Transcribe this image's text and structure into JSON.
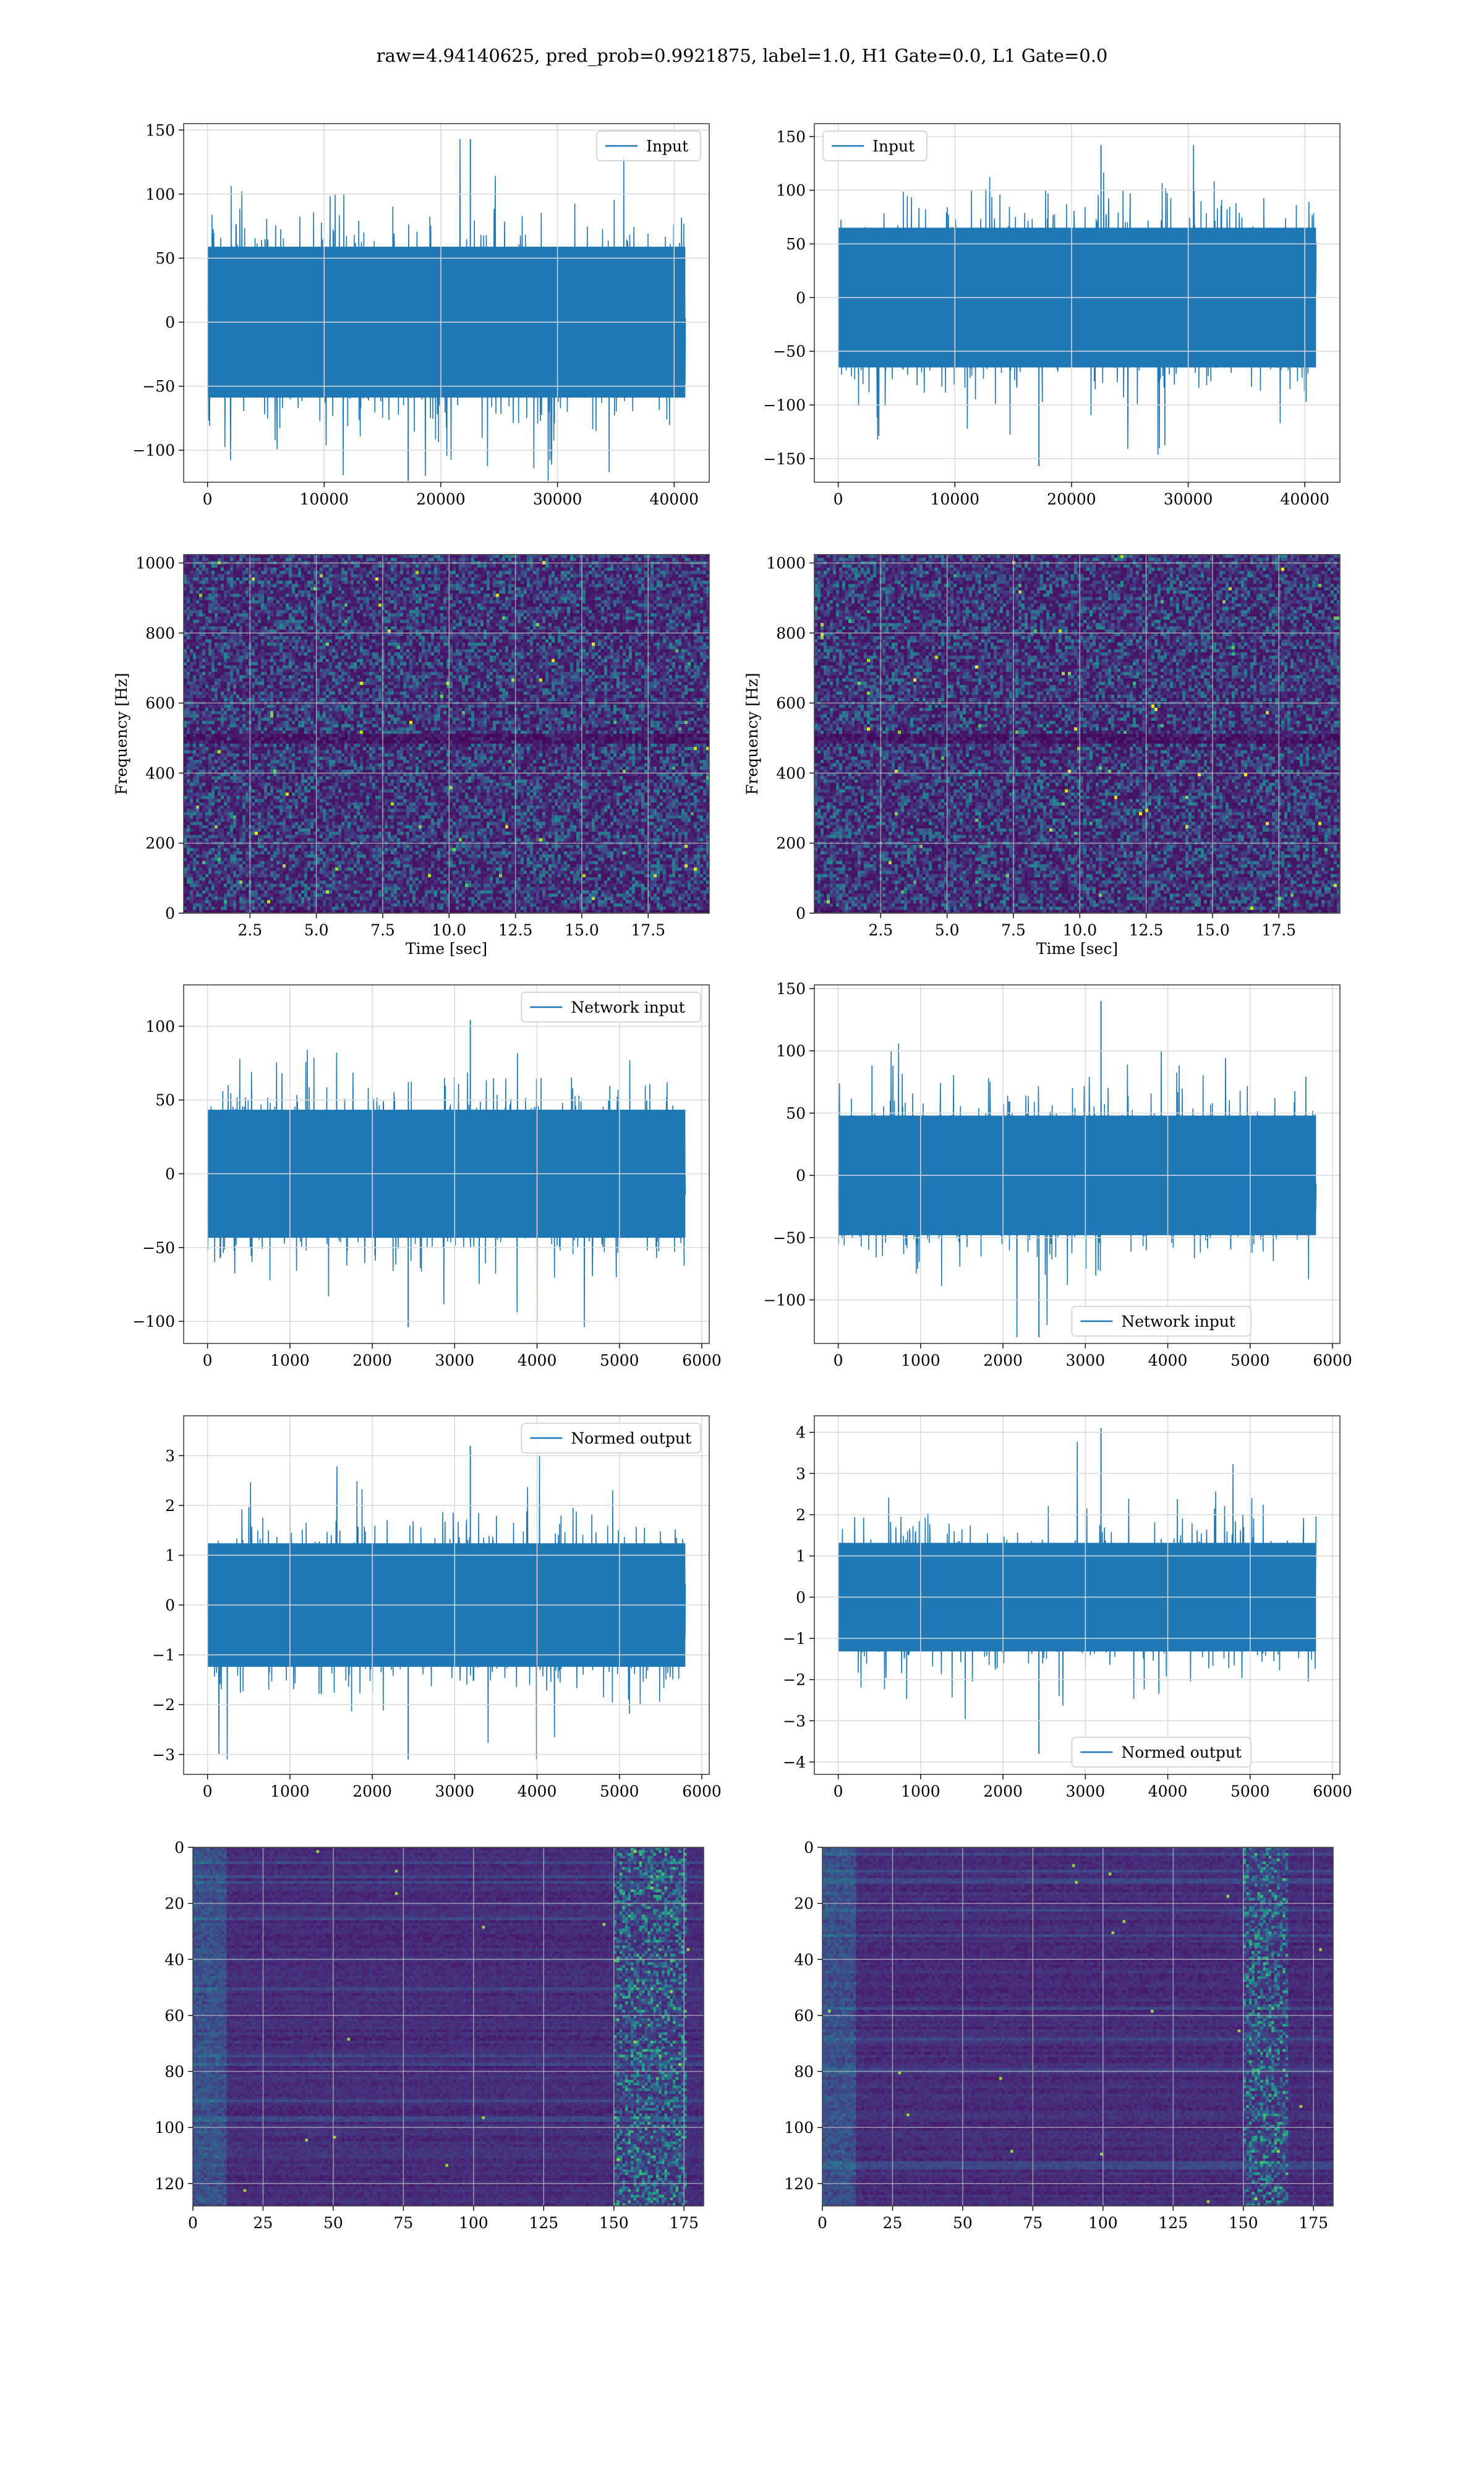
{
  "suptitle": "raw=4.94140625, pred_prob=0.9921875, label=1.0, H1 Gate=0.0, L1 Gate=0.0",
  "colors": {
    "series": "#1f77b4",
    "grid": "#d9d9d9",
    "axes": "#444444"
  },
  "chart_data": [
    {
      "id": "h1-input",
      "type": "line",
      "n_points": 40960,
      "xlim": [
        -2048,
        43008
      ],
      "ylim": [
        -125,
        155
      ],
      "xticks": [
        0,
        10000,
        20000,
        30000,
        40000
      ],
      "xticklabels": [
        "0",
        "10000",
        "20000",
        "30000",
        "40000"
      ],
      "yticks": [
        150,
        100,
        50,
        0,
        -50,
        -100
      ],
      "yticklabels": [
        "150",
        "100",
        "50",
        "0",
        "−50",
        "−100"
      ],
      "series": [
        {
          "name": "Input",
          "amplitude_sigma": 38,
          "peak_max": 143,
          "peak_min": -124
        }
      ],
      "legend_pos": "top-right",
      "grid": true,
      "xlabel": "",
      "ylabel": ""
    },
    {
      "id": "l1-input",
      "type": "line",
      "n_points": 40960,
      "xlim": [
        -2048,
        43008
      ],
      "ylim": [
        -172,
        162
      ],
      "xticks": [
        0,
        10000,
        20000,
        30000,
        40000
      ],
      "xticklabels": [
        "0",
        "10000",
        "20000",
        "30000",
        "40000"
      ],
      "yticks": [
        150,
        100,
        50,
        0,
        -50,
        -100,
        -150
      ],
      "yticklabels": [
        "150",
        "100",
        "50",
        "0",
        "−50",
        "−100",
        "−150"
      ],
      "series": [
        {
          "name": "Input",
          "amplitude_sigma": 42,
          "peak_max": 142,
          "peak_min": -157
        }
      ],
      "legend_pos": "top-left",
      "grid": true,
      "xlabel": "",
      "ylabel": ""
    },
    {
      "id": "h1-spectrogram",
      "type": "heatmap",
      "cmap": "viridis",
      "xlim": [
        0,
        19.8
      ],
      "ylim": [
        0,
        1024
      ],
      "xticks": [
        2.5,
        5.0,
        7.5,
        10.0,
        12.5,
        15.0,
        17.5
      ],
      "xticklabels": [
        "2.5",
        "5.0",
        "7.5",
        "10.0",
        "12.5",
        "15.0",
        "17.5"
      ],
      "yticks": [
        0,
        200,
        400,
        600,
        800,
        1000
      ],
      "yticklabels": [
        "0",
        "200",
        "400",
        "600",
        "800",
        "1000"
      ],
      "xlabel": "Time [sec]",
      "ylabel": "Frequency [Hz]",
      "dark_band_hz": 500,
      "grid": true
    },
    {
      "id": "l1-spectrogram",
      "type": "heatmap",
      "cmap": "viridis",
      "xlim": [
        0,
        19.8
      ],
      "ylim": [
        0,
        1024
      ],
      "xticks": [
        2.5,
        5.0,
        7.5,
        10.0,
        12.5,
        15.0,
        17.5
      ],
      "xticklabels": [
        "2.5",
        "5.0",
        "7.5",
        "10.0",
        "12.5",
        "15.0",
        "17.5"
      ],
      "yticks": [
        0,
        200,
        400,
        600,
        800,
        1000
      ],
      "yticklabels": [
        "0",
        "200",
        "400",
        "600",
        "800",
        "1000"
      ],
      "xlabel": "Time [sec]",
      "ylabel": "Frequency [Hz]",
      "dark_band_hz": 500,
      "grid": true
    },
    {
      "id": "h1-network-input",
      "type": "line",
      "n_points": 5800,
      "xlim": [
        -290,
        6090
      ],
      "ylim": [
        -115,
        128
      ],
      "xticks": [
        0,
        1000,
        2000,
        3000,
        4000,
        5000,
        6000
      ],
      "xticklabels": [
        "0",
        "1000",
        "2000",
        "3000",
        "4000",
        "5000",
        "6000"
      ],
      "yticks": [
        100,
        50,
        0,
        -50,
        -100
      ],
      "yticklabels": [
        "100",
        "50",
        "0",
        "−50",
        "−100"
      ],
      "series": [
        {
          "name": "Network input",
          "amplitude_sigma": 28,
          "peak_max": 104,
          "peak_min": -104
        }
      ],
      "legend_pos": "top-right",
      "grid": true,
      "xlabel": "",
      "ylabel": ""
    },
    {
      "id": "l1-network-input",
      "type": "line",
      "n_points": 5800,
      "xlim": [
        -290,
        6090
      ],
      "ylim": [
        -135,
        153
      ],
      "xticks": [
        0,
        1000,
        2000,
        3000,
        4000,
        5000,
        6000
      ],
      "xticklabels": [
        "0",
        "1000",
        "2000",
        "3000",
        "4000",
        "5000",
        "6000"
      ],
      "yticks": [
        150,
        100,
        50,
        0,
        -50,
        -100
      ],
      "yticklabels": [
        "150",
        "100",
        "50",
        "0",
        "−50",
        "−100"
      ],
      "series": [
        {
          "name": "Network input",
          "amplitude_sigma": 31,
          "peak_max": 140,
          "peak_min": -130
        }
      ],
      "legend_pos": "bottom-right",
      "grid": true,
      "xlabel": "",
      "ylabel": ""
    },
    {
      "id": "h1-normed-output",
      "type": "line",
      "n_points": 5800,
      "xlim": [
        -290,
        6090
      ],
      "ylim": [
        -3.4,
        3.8
      ],
      "xticks": [
        0,
        1000,
        2000,
        3000,
        4000,
        5000,
        6000
      ],
      "xticklabels": [
        "0",
        "1000",
        "2000",
        "3000",
        "4000",
        "5000",
        "6000"
      ],
      "yticks": [
        3,
        2,
        1,
        0,
        -1,
        -2,
        -3
      ],
      "yticklabels": [
        "3",
        "2",
        "1",
        "0",
        "−1",
        "−2",
        "−3"
      ],
      "series": [
        {
          "name": "Normed output",
          "amplitude_sigma": 0.8,
          "peak_max": 3.2,
          "peak_min": -3.1
        }
      ],
      "legend_pos": "top-right",
      "grid": true,
      "xlabel": "",
      "ylabel": ""
    },
    {
      "id": "l1-normed-output",
      "type": "line",
      "n_points": 5800,
      "xlim": [
        -290,
        6090
      ],
      "ylim": [
        -4.3,
        4.4
      ],
      "xticks": [
        0,
        1000,
        2000,
        3000,
        4000,
        5000,
        6000
      ],
      "xticklabels": [
        "0",
        "1000",
        "2000",
        "3000",
        "4000",
        "5000",
        "6000"
      ],
      "yticks": [
        4,
        3,
        2,
        1,
        0,
        -1,
        -2,
        -3,
        -4
      ],
      "yticklabels": [
        "4",
        "3",
        "2",
        "1",
        "0",
        "−1",
        "−2",
        "−3",
        "−4"
      ],
      "series": [
        {
          "name": "Normed output",
          "amplitude_sigma": 0.85,
          "peak_max": 4.1,
          "peak_min": -3.8
        }
      ],
      "legend_pos": "bottom-right",
      "grid": true,
      "xlabel": "",
      "ylabel": ""
    },
    {
      "id": "h1-feature-map",
      "type": "heatmap",
      "cmap": "viridis",
      "xlim": [
        0,
        182
      ],
      "ylim": [
        128,
        0
      ],
      "xticks": [
        0,
        25,
        50,
        75,
        100,
        125,
        150,
        175
      ],
      "xticklabels": [
        "0",
        "25",
        "50",
        "75",
        "100",
        "125",
        "150",
        "175"
      ],
      "yticks": [
        0,
        20,
        40,
        60,
        80,
        100,
        120
      ],
      "yticklabels": [
        "0",
        "20",
        "40",
        "60",
        "80",
        "100",
        "120"
      ],
      "bright_band_x": [
        150,
        175
      ],
      "grid": true,
      "xlabel": "",
      "ylabel": ""
    },
    {
      "id": "l1-feature-map",
      "type": "heatmap",
      "cmap": "viridis",
      "xlim": [
        0,
        182
      ],
      "ylim": [
        128,
        0
      ],
      "xticks": [
        0,
        25,
        50,
        75,
        100,
        125,
        150,
        175
      ],
      "xticklabels": [
        "0",
        "25",
        "50",
        "75",
        "100",
        "125",
        "150",
        "175"
      ],
      "yticks": [
        0,
        20,
        40,
        60,
        80,
        100,
        120
      ],
      "yticklabels": [
        "0",
        "20",
        "40",
        "60",
        "80",
        "100",
        "120"
      ],
      "bright_band_x": [
        150,
        165
      ],
      "grid": true,
      "xlabel": "",
      "ylabel": ""
    }
  ]
}
